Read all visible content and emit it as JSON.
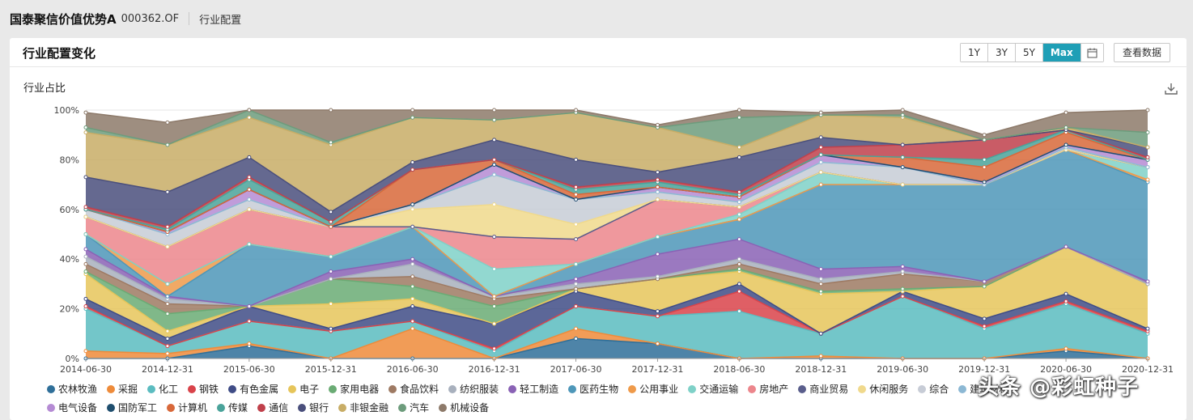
{
  "header": {
    "fund_name": "国泰聚信价值优势A",
    "fund_code": "000362.OF",
    "tab": "行业配置"
  },
  "card": {
    "title": "行业配置变化",
    "range_buttons": [
      {
        "label": "1Y",
        "active": false
      },
      {
        "label": "3Y",
        "active": false
      },
      {
        "label": "5Y",
        "active": false
      },
      {
        "label": "Max",
        "active": true
      }
    ],
    "calendar_icon": "calendar-icon",
    "view_data_label": "查看数据",
    "chart_subtitle": "行业占比",
    "download_icon": "download-icon"
  },
  "watermark": "头条 @彩虹种子",
  "chart_data": {
    "type": "area",
    "stacked": true,
    "x": [
      "2014-06-30",
      "2014-12-31",
      "2015-06-30",
      "2015-12-31",
      "2016-06-30",
      "2016-12-31",
      "2017-06-30",
      "2017-12-31",
      "2018-06-30",
      "2018-12-31",
      "2019-06-30",
      "2019-12-31",
      "2020-06-30",
      "2020-12-31"
    ],
    "ylim": [
      0,
      100
    ],
    "yticks": [
      "0%",
      "20%",
      "40%",
      "60%",
      "80%",
      "100%"
    ],
    "grid": true,
    "legend_position": "bottom",
    "series": [
      {
        "name": "农林牧渔",
        "color": "#2f6f99",
        "values": [
          0,
          0,
          5,
          0,
          0,
          0,
          8,
          6,
          0,
          0,
          0,
          0,
          3,
          0
        ]
      },
      {
        "name": "采掘",
        "color": "#ee8b3a",
        "values": [
          3,
          2,
          1,
          0,
          12,
          0,
          4,
          0,
          0,
          1,
          0,
          0,
          1,
          0
        ]
      },
      {
        "name": "化工",
        "color": "#5bbcc0",
        "values": [
          17,
          3,
          9,
          11,
          3,
          3,
          9,
          11,
          19,
          9,
          25,
          12,
          18,
          10
        ]
      },
      {
        "name": "钢铁",
        "color": "#d9434a",
        "values": [
          1,
          0,
          0,
          0,
          0,
          1,
          0,
          0,
          8,
          0,
          0,
          1,
          1,
          1
        ]
      },
      {
        "name": "有色金属",
        "color": "#3f4c86",
        "values": [
          3,
          3,
          6,
          1,
          6,
          10,
          6,
          2,
          3,
          0,
          2,
          3,
          3,
          1
        ]
      },
      {
        "name": "电子",
        "color": "#e6c55a",
        "values": [
          10,
          3,
          0,
          10,
          3,
          0,
          1,
          13,
          5,
          16,
          0,
          13,
          19,
          18
        ]
      },
      {
        "name": "家用电器",
        "color": "#6aab74",
        "values": [
          1,
          7,
          0,
          10,
          5,
          7,
          0,
          0,
          1,
          1,
          1,
          0,
          0,
          0
        ]
      },
      {
        "name": "食品饮料",
        "color": "#9e7a63",
        "values": [
          3,
          4,
          0,
          0,
          4,
          3,
          0,
          0,
          2,
          3,
          6,
          2,
          0,
          0
        ]
      },
      {
        "name": "纺织服装",
        "color": "#a8b0bd",
        "values": [
          3,
          2,
          0,
          0,
          5,
          1,
          2,
          1,
          2,
          2,
          1,
          0,
          0,
          0
        ]
      },
      {
        "name": "轻工制造",
        "color": "#8a62b5",
        "values": [
          3,
          1,
          0,
          3,
          2,
          0,
          2,
          9,
          8,
          4,
          2,
          0,
          0,
          1
        ]
      },
      {
        "name": "医药生物",
        "color": "#4e97b9",
        "values": [
          6,
          0,
          25,
          6,
          13,
          0,
          6,
          7,
          8,
          34,
          33,
          39,
          39,
          40
        ]
      },
      {
        "name": "公用事业",
        "color": "#ef9a4a",
        "values": [
          0,
          5,
          0,
          0,
          0,
          0,
          0,
          0,
          0,
          0,
          0,
          0,
          0,
          1
        ]
      },
      {
        "name": "交通运输",
        "color": "#7fd1c8",
        "values": [
          0,
          0,
          0,
          0,
          0,
          11,
          0,
          0,
          2,
          5,
          0,
          0,
          0,
          5
        ]
      },
      {
        "name": "房地产",
        "color": "#ec868c",
        "values": [
          7,
          15,
          14,
          12,
          0,
          13,
          10,
          15,
          3,
          0,
          0,
          0,
          0,
          0
        ]
      },
      {
        "name": "商业贸易",
        "color": "#5a5e8c",
        "values": [
          0,
          0,
          0,
          0,
          0,
          0,
          0,
          0,
          0,
          0,
          0,
          0,
          0,
          0
        ]
      },
      {
        "name": "休闲服务",
        "color": "#f0d98c",
        "values": [
          0,
          0,
          0,
          0,
          7,
          13,
          6,
          0,
          0,
          0,
          0,
          0,
          0,
          0
        ]
      },
      {
        "name": "综合",
        "color": "#c7ccd6",
        "values": [
          3,
          5,
          4,
          0,
          2,
          12,
          10,
          3,
          2,
          4,
          7,
          0,
          1,
          0
        ]
      },
      {
        "name": "建筑材料",
        "color": "#8cb8d4",
        "values": [
          0,
          0,
          0,
          0,
          0,
          0,
          0,
          0,
          0,
          0,
          0,
          0,
          0,
          0
        ]
      },
      {
        "name": "电气设备",
        "color": "#b58bd4",
        "values": [
          0,
          1,
          4,
          0,
          0,
          4,
          0,
          2,
          2,
          3,
          0,
          1,
          1,
          3
        ]
      },
      {
        "name": "国防军工",
        "color": "#1f4e6e",
        "values": [
          0,
          0,
          0,
          0,
          0,
          0,
          0,
          0,
          0,
          0,
          0,
          0,
          0,
          0
        ]
      },
      {
        "name": "计算机",
        "color": "#d8683a",
        "values": [
          0,
          0,
          0,
          0,
          14,
          2,
          2,
          0,
          0,
          0,
          4,
          6,
          5,
          0
        ]
      },
      {
        "name": "传媒",
        "color": "#4aa39a",
        "values": [
          0,
          1,
          4,
          2,
          0,
          0,
          2,
          2,
          1,
          0,
          0,
          3,
          1,
          0
        ]
      },
      {
        "name": "通信",
        "color": "#c0404b",
        "values": [
          1,
          1,
          1,
          0,
          0,
          0,
          1,
          1,
          1,
          3,
          5,
          8,
          0,
          1
        ]
      },
      {
        "name": "银行",
        "color": "#4a4f7c",
        "values": [
          12,
          14,
          8,
          4,
          3,
          8,
          11,
          3,
          14,
          4,
          0,
          0,
          0,
          4
        ]
      },
      {
        "name": "非银金融",
        "color": "#c8ad66",
        "values": [
          18,
          19,
          16,
          27,
          18,
          8,
          19,
          18,
          4,
          9,
          11,
          0,
          1,
          0
        ]
      },
      {
        "name": "汽车",
        "color": "#6d9c7c",
        "values": [
          2,
          0,
          3,
          1,
          0,
          0,
          0,
          0,
          12,
          0,
          1,
          0,
          0,
          6
        ]
      },
      {
        "name": "机械设备",
        "color": "#8d7a6a",
        "values": [
          6,
          9,
          0,
          13,
          3,
          4,
          1,
          1,
          3,
          1,
          2,
          2,
          6,
          9
        ]
      }
    ]
  }
}
